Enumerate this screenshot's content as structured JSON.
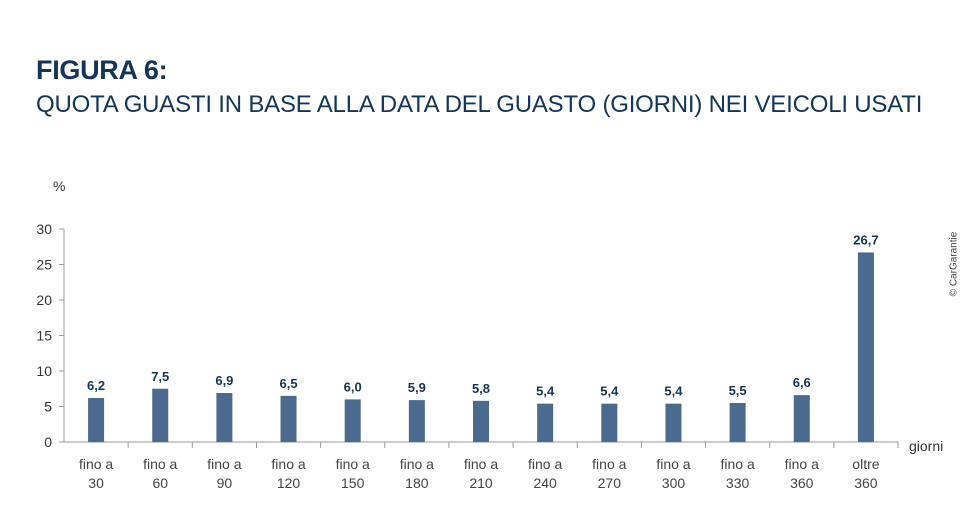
{
  "title": "FIGURA 6:",
  "subtitle": "QUOTA GUASTI IN BASE ALLA DATA DEL GUASTO (GIORNI) NEI VEICOLI USATI",
  "copyright": "© CarGarantie",
  "chart_data": {
    "type": "bar",
    "title": "",
    "ylabel": "%",
    "xlabel": "giorni",
    "ylim": [
      0,
      30
    ],
    "yticks": [
      "0",
      "5",
      "10",
      "15",
      "20",
      "25",
      "30"
    ],
    "categories": [
      [
        "fino a",
        "30"
      ],
      [
        "fino a",
        "60"
      ],
      [
        "fino a",
        "90"
      ],
      [
        "fino a",
        "120"
      ],
      [
        "fino a",
        "150"
      ],
      [
        "fino a",
        "180"
      ],
      [
        "fino a",
        "210"
      ],
      [
        "fino a",
        "240"
      ],
      [
        "fino a",
        "270"
      ],
      [
        "fino a",
        "300"
      ],
      [
        "fino a",
        "330"
      ],
      [
        "fino a",
        "360"
      ],
      [
        "oltre",
        "360"
      ]
    ],
    "values": [
      6.2,
      7.5,
      6.9,
      6.5,
      6.0,
      5.9,
      5.8,
      5.4,
      5.4,
      5.4,
      5.5,
      6.6,
      26.7
    ],
    "value_labels": [
      "6,2",
      "7,5",
      "6,9",
      "6,5",
      "6,0",
      "5,9",
      "5,8",
      "5,4",
      "5,4",
      "5,4",
      "5,5",
      "6,6",
      "26,7"
    ],
    "bar_color": "#4a6a8f",
    "label_color": "#13345b",
    "grid": false,
    "legend": "none"
  }
}
